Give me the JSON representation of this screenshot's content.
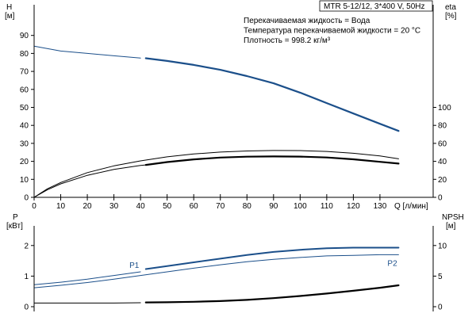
{
  "chart_data": [
    {
      "type": "line",
      "title": "MTR 5-12/12, 3*400 V, 50Hz",
      "annotations": [
        "Перекачиваемая жидкость = Вода",
        "Температура перекачиваемой жидкости = 20 °C",
        "Плотность = 998.2 кг/м³"
      ],
      "xlabel": "Q [л/мин]",
      "xlim": [
        0,
        150
      ],
      "xticks": [
        0,
        10,
        20,
        30,
        40,
        50,
        60,
        70,
        80,
        90,
        100,
        110,
        120,
        130
      ],
      "ylabel": "H",
      "ylabel_unit": "[м]",
      "ylim": [
        0,
        90
      ],
      "yticks": [
        0,
        10,
        20,
        30,
        40,
        50,
        60,
        70,
        80,
        90
      ],
      "y2label": "eta",
      "y2label_unit": "[%]",
      "y2lim": [
        0,
        100
      ],
      "y2ticks": [
        0,
        20,
        40,
        60,
        80,
        100
      ],
      "grid": true,
      "series": [
        {
          "axis": "left",
          "color": "#1b4f8a",
          "stroke_width": 1,
          "x": [
            0,
            10,
            20,
            30,
            40
          ],
          "values": [
            84,
            81.3,
            80,
            78.7,
            77.4
          ]
        },
        {
          "axis": "left",
          "color": "#1b4f8a",
          "stroke_width": 2.2,
          "x": [
            42,
            50,
            60,
            70,
            80,
            90,
            100,
            110,
            120,
            130,
            137
          ],
          "values": [
            77.3,
            75.8,
            73.6,
            70.9,
            67.4,
            63.4,
            58.2,
            52.4,
            46.6,
            40.9,
            36.9
          ]
        },
        {
          "axis": "right",
          "color": "#000000",
          "stroke_width": 1,
          "x": [
            0,
            5,
            10,
            20,
            30,
            40,
            50,
            60,
            70,
            80,
            90,
            100,
            110,
            120,
            130,
            137
          ],
          "values": [
            0,
            9.5,
            16.5,
            27.5,
            35,
            40.5,
            45,
            48.2,
            50.3,
            51.5,
            52.1,
            52,
            51,
            49,
            46,
            42.8
          ]
        },
        {
          "axis": "right",
          "color": "#000000",
          "stroke_width": 1,
          "x": [
            0,
            5,
            10,
            20,
            30,
            40,
            42
          ],
          "values": [
            0,
            8.5,
            15,
            24.5,
            31,
            35.4,
            36
          ]
        },
        {
          "axis": "right",
          "color": "#000000",
          "stroke_width": 2.2,
          "x": [
            42,
            50,
            60,
            70,
            80,
            90,
            100,
            110,
            120,
            130,
            137
          ],
          "values": [
            36,
            39.2,
            42.2,
            44.2,
            45.2,
            45.5,
            45.3,
            44.3,
            42.3,
            39.5,
            37.5
          ]
        }
      ]
    },
    {
      "type": "line",
      "xlim": [
        0,
        150
      ],
      "ylabel": "P",
      "ylabel_unit": "[кВт]",
      "ylim": [
        0,
        2.5
      ],
      "yticks": [
        0,
        1,
        2
      ],
      "y2label": "NPSH",
      "y2label_unit": "[м]",
      "y2lim": [
        0,
        12.5
      ],
      "y2ticks": [
        0,
        5,
        10
      ],
      "grid": true,
      "series": [
        {
          "name": "P1",
          "axis": "left",
          "color": "#1b4f8a",
          "stroke_width": 1,
          "x": [
            0,
            10,
            20,
            30,
            40
          ],
          "values": [
            0.72,
            0.8,
            0.9,
            1.02,
            1.14
          ]
        },
        {
          "name": "P1",
          "axis": "left",
          "color": "#1b4f8a",
          "stroke_width": 2,
          "x": [
            42,
            50,
            60,
            70,
            80,
            90,
            100,
            110,
            120,
            130,
            137
          ],
          "values": [
            1.23,
            1.33,
            1.45,
            1.57,
            1.69,
            1.79,
            1.86,
            1.91,
            1.93,
            1.93,
            1.93
          ]
        },
        {
          "name": "P2",
          "axis": "left",
          "color": "#1b4f8a",
          "stroke_width": 1,
          "x": [
            0,
            10,
            20,
            30,
            40,
            50,
            60,
            70,
            80,
            90,
            100,
            110,
            120,
            130,
            137
          ],
          "values": [
            0.62,
            0.7,
            0.79,
            0.9,
            1.02,
            1.14,
            1.26,
            1.37,
            1.47,
            1.55,
            1.61,
            1.66,
            1.68,
            1.7,
            1.7
          ]
        },
        {
          "axis": "right",
          "color": "#000000",
          "stroke_width": 1,
          "x": [
            0,
            10,
            20,
            30,
            40
          ],
          "values": [
            0.6,
            0.6,
            0.6,
            0.6,
            0.65
          ]
        },
        {
          "axis": "right",
          "color": "#000000",
          "stroke_width": 2.2,
          "x": [
            42,
            50,
            60,
            70,
            80,
            90,
            100,
            110,
            120,
            130,
            137
          ],
          "values": [
            0.7,
            0.72,
            0.8,
            0.92,
            1.12,
            1.4,
            1.75,
            2.15,
            2.6,
            3.1,
            3.5
          ]
        }
      ]
    }
  ]
}
